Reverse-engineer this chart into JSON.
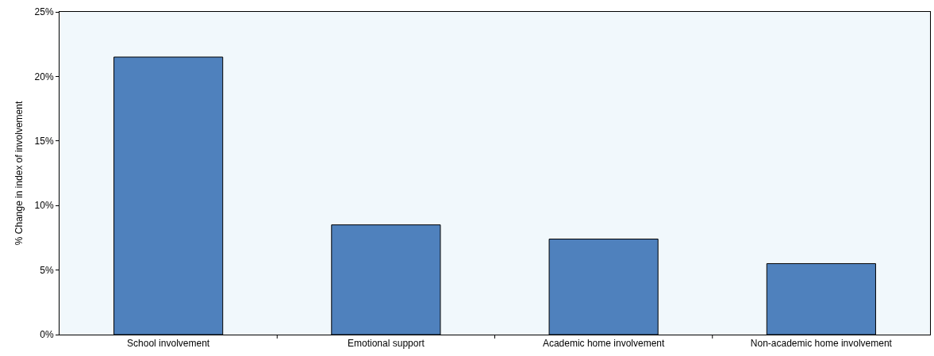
{
  "chart_data": {
    "type": "bar",
    "ylabel": "% Change in index of involvement",
    "categories": [
      "School involvement",
      "Emotional support",
      "Academic home involvement",
      "Non-academic home involvement"
    ],
    "values": [
      21.5,
      8.5,
      7.4,
      5.5
    ],
    "color": "#4f81bd",
    "ylim": [
      0,
      25
    ],
    "yticks": [
      {
        "value": 0,
        "label": "0%"
      },
      {
        "value": 5,
        "label": "5%"
      },
      {
        "value": 10,
        "label": "10%"
      },
      {
        "value": 15,
        "label": "15%"
      },
      {
        "value": 20,
        "label": "20%"
      },
      {
        "value": 25,
        "label": "25%"
      }
    ],
    "grid": false,
    "legend": false
  }
}
